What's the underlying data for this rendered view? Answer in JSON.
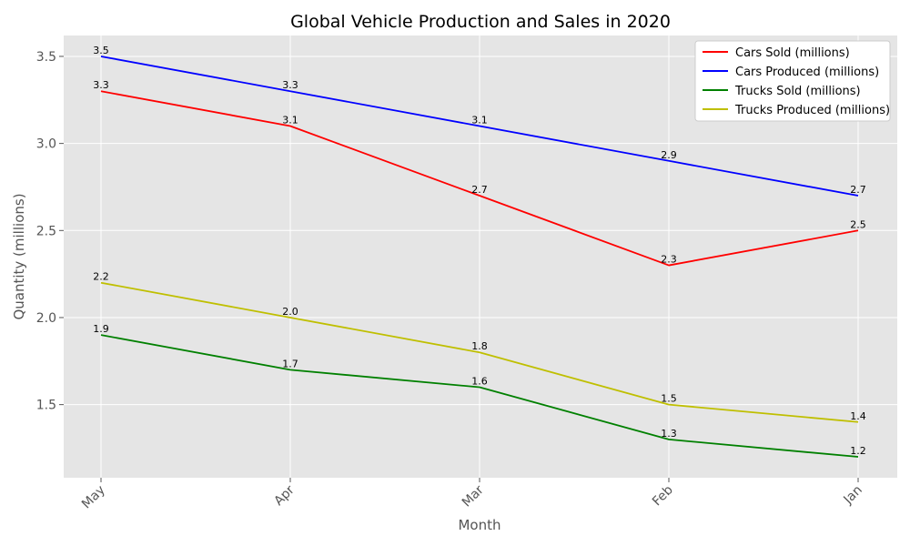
{
  "chart_data": {
    "type": "line",
    "title": "Global Vehicle Production and Sales in 2020",
    "xlabel": "Month",
    "ylabel": "Quantity (millions)",
    "categories": [
      "May",
      "Apr",
      "Mar",
      "Feb",
      "Jan"
    ],
    "ylim": [
      1.08,
      3.62
    ],
    "yticks": [
      1.5,
      2.0,
      2.5,
      3.0,
      3.5
    ],
    "ytick_labels": [
      "1.5",
      "2.0",
      "2.5",
      "3.0",
      "3.5"
    ],
    "grid": true,
    "legend_position": "top-right",
    "series": [
      {
        "name": "Cars Sold (millions)",
        "color": "#ff0000",
        "values": [
          3.3,
          3.1,
          2.7,
          2.3,
          2.5
        ],
        "labels": [
          "3.3",
          "3.1",
          "2.7",
          "2.3",
          "2.5"
        ]
      },
      {
        "name": "Cars Produced (millions)",
        "color": "#0000ff",
        "values": [
          3.5,
          3.3,
          3.1,
          2.9,
          2.7
        ],
        "labels": [
          "3.5",
          "3.3",
          "3.1",
          "2.9",
          "2.7"
        ]
      },
      {
        "name": "Trucks Sold (millions)",
        "color": "#008000",
        "values": [
          1.9,
          1.7,
          1.6,
          1.3,
          1.2
        ],
        "labels": [
          "1.9",
          "1.7",
          "1.6",
          "1.3",
          "1.2"
        ]
      },
      {
        "name": "Trucks Produced (millions)",
        "color": "#bfbf00",
        "values": [
          2.2,
          2.0,
          1.8,
          1.5,
          1.4
        ],
        "labels": [
          "2.2",
          "2.0",
          "1.8",
          "1.5",
          "1.4"
        ]
      }
    ]
  }
}
